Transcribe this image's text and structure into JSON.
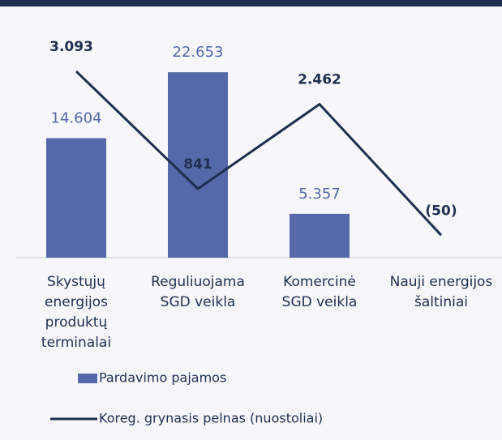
{
  "chart_data": {
    "type": "bar_line",
    "categories": [
      "Skystųjų\nenergijos\nproduktų\nterminalai",
      "Reguliuojama\nSGD veikla",
      "Komercinė\nSGD veikla",
      "Nauji energijos\nšaltiniai"
    ],
    "ylim": [
      0,
      29500
    ],
    "y2lim": [
      -480,
      4150
    ],
    "series": [
      {
        "name": "Pardavimo pajamos",
        "type": "bar",
        "color": "#5568a9",
        "values": [
          14604,
          22653,
          5357,
          null
        ],
        "value_labels": [
          "14.604",
          "22.653",
          "5.357",
          null
        ]
      },
      {
        "name": "Koreg. grynasis pelnas (nuostoliai)",
        "type": "line",
        "axis": "y2",
        "color": "#1e2f4f",
        "values": [
          3093,
          841,
          2462,
          -50
        ],
        "value_labels": [
          "3.093",
          "841",
          "2.462",
          "(50)"
        ]
      }
    ]
  }
}
